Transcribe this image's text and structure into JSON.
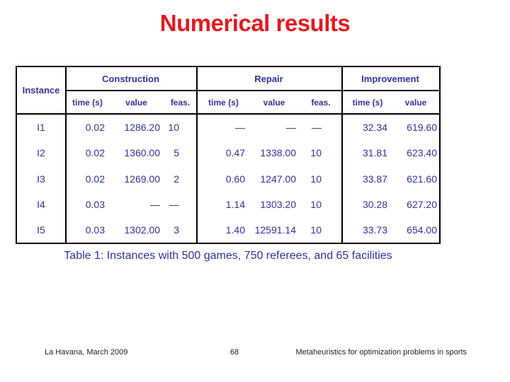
{
  "slide": {
    "title": "Numerical results"
  },
  "table": {
    "corner_header": "Instance",
    "groups": [
      {
        "label": "Construction",
        "sub": [
          "time (s)",
          "value",
          "feas."
        ]
      },
      {
        "label": "Repair",
        "sub": [
          "time (s)",
          "value",
          "feas."
        ]
      },
      {
        "label": "Improvement",
        "sub": [
          "time (s)",
          "value"
        ]
      }
    ],
    "rows": [
      {
        "instance": "I1",
        "c_time": "0.02",
        "c_value": "1286.20",
        "c_feas": "10",
        "r_time": "—",
        "r_value": "—",
        "r_feas": "—",
        "i_time": "32.34",
        "i_value": "619.60"
      },
      {
        "instance": "I2",
        "c_time": "0.02",
        "c_value": "1360.00",
        "c_feas": "5",
        "r_time": "0.47",
        "r_value": "1338.00",
        "r_feas": "10",
        "i_time": "31.81",
        "i_value": "623.40"
      },
      {
        "instance": "I3",
        "c_time": "0.02",
        "c_value": "1269.00",
        "c_feas": "2",
        "r_time": "0.60",
        "r_value": "1247.00",
        "r_feas": "10",
        "i_time": "33.87",
        "i_value": "621.60"
      },
      {
        "instance": "I4",
        "c_time": "0.03",
        "c_value": "—",
        "c_feas": "—",
        "r_time": "1.14",
        "r_value": "1303.20",
        "r_feas": "10",
        "i_time": "30.28",
        "i_value": "627.20"
      },
      {
        "instance": "I5",
        "c_time": "0.03",
        "c_value": "1302.00",
        "c_feas": "3",
        "r_time": "1.40",
        "r_value": "12591.14",
        "r_feas": "10",
        "i_time": "33.73",
        "i_value": "654.00"
      }
    ],
    "caption": "Table 1: Instances with 500 games, 750 referees, and 65 facilities"
  },
  "footer": {
    "left": "La Havana, March 2009",
    "page": "68",
    "right": "Metaheuristics for optimization problems in sports"
  },
  "colors": {
    "title_red": "#e11b21",
    "navy": "#303293",
    "border_black": "#000000"
  }
}
